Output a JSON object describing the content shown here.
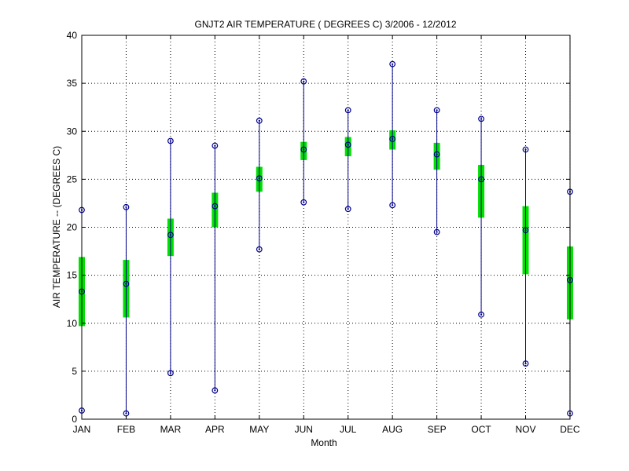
{
  "chart_data": {
    "type": "box",
    "title": "GNJT2  AIR TEMPERATURE ( DEGREES C) 3/2006 - 12/2012",
    "xlabel": "Month",
    "ylabel": "AIR TEMPERATURE -- (DEGREES C)",
    "ylim": [
      0,
      40
    ],
    "yticks": [
      "0",
      "5",
      "10",
      "15",
      "20",
      "25",
      "30",
      "35",
      "40"
    ],
    "grid": true,
    "categories": [
      "JAN",
      "FEB",
      "MAR",
      "APR",
      "MAY",
      "JUN",
      "JUL",
      "AUG",
      "SEP",
      "OCT",
      "NOV",
      "DEC"
    ],
    "min": [
      0.9,
      0.6,
      4.8,
      3.0,
      17.7,
      22.6,
      21.9,
      22.3,
      19.5,
      10.9,
      5.8,
      0.6
    ],
    "q1": [
      9.7,
      10.6,
      17.0,
      20.0,
      23.7,
      27.0,
      27.4,
      28.1,
      26.0,
      21.0,
      15.1,
      10.4
    ],
    "median": [
      13.3,
      14.1,
      19.2,
      22.2,
      25.1,
      28.1,
      28.6,
      29.2,
      27.6,
      25.0,
      19.7,
      14.5
    ],
    "q3": [
      16.9,
      16.6,
      20.9,
      23.6,
      26.3,
      28.9,
      29.4,
      30.1,
      28.8,
      26.5,
      22.2,
      18.0
    ],
    "max": [
      21.8,
      22.1,
      29.0,
      28.5,
      31.1,
      35.2,
      32.2,
      37.0,
      32.2,
      31.3,
      28.1,
      23.7
    ],
    "colors": {
      "whisker": "#00008b",
      "box": "#00e000",
      "axis": "#000000",
      "grid": "#000000"
    }
  }
}
